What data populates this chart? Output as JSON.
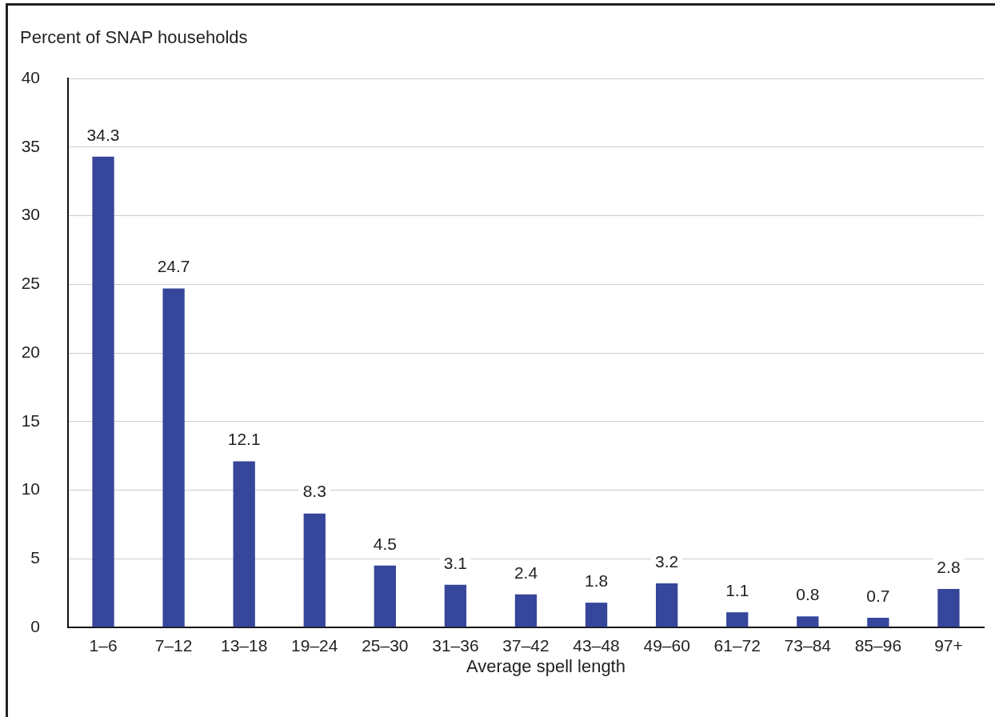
{
  "chart_data": {
    "type": "bar",
    "ylabel": "Percent of SNAP households",
    "xlabel": "Average spell length",
    "categories": [
      "1–6",
      "7–12",
      "13–18",
      "19–24",
      "25–30",
      "31–36",
      "37–42",
      "43–48",
      "49–60",
      "61–72",
      "73–84",
      "85–96",
      "97+"
    ],
    "values": [
      34.3,
      24.7,
      12.1,
      8.3,
      4.5,
      3.1,
      2.4,
      1.8,
      3.2,
      1.1,
      0.8,
      0.7,
      2.8
    ],
    "color": "#36469b",
    "ylim": [
      0,
      40
    ],
    "yticks": [
      0,
      5,
      10,
      15,
      20,
      25,
      30,
      35,
      40
    ],
    "grid": "y",
    "data_labels": true
  }
}
